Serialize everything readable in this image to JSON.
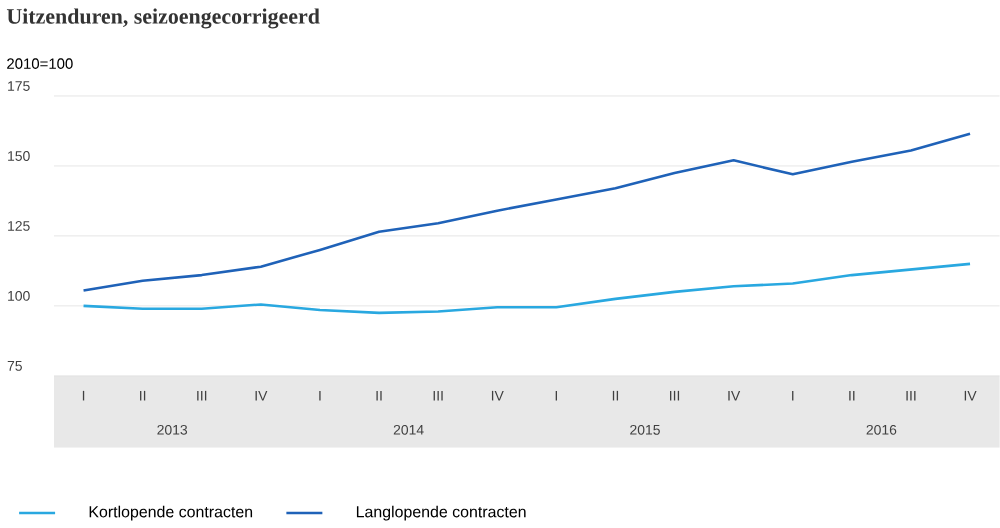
{
  "chart_data": {
    "type": "line",
    "title": "Uitzenduren, seizoengecorrigeerd",
    "ylabel": "2010=100",
    "categories": [
      "I",
      "II",
      "III",
      "IV",
      "I",
      "II",
      "III",
      "IV",
      "I",
      "II",
      "III",
      "IV",
      "I",
      "II",
      "III",
      "IV"
    ],
    "annotations": [
      "2013",
      "2014",
      "2015",
      "2016"
    ],
    "series": [
      {
        "name": "Kortlopende contracten",
        "color": "#29a8e0",
        "values": [
          100,
          99,
          99,
          100.5,
          98.5,
          97.5,
          98,
          99.5,
          99.5,
          102.5,
          105,
          107,
          108,
          111,
          113,
          115
        ]
      },
      {
        "name": "Langlopende contracten",
        "color": "#1f62b8",
        "values": [
          105.5,
          109,
          111,
          114,
          120,
          126.5,
          129.5,
          134,
          138,
          142,
          147.5,
          152,
          147,
          151.5,
          155.5,
          161.5
        ]
      }
    ],
    "ylim": [
      75,
      175
    ],
    "yticks": [
      75,
      100,
      125,
      150,
      175
    ],
    "grid": "y",
    "legend": "bottom left",
    "marker": "none",
    "line_style": "solid"
  }
}
